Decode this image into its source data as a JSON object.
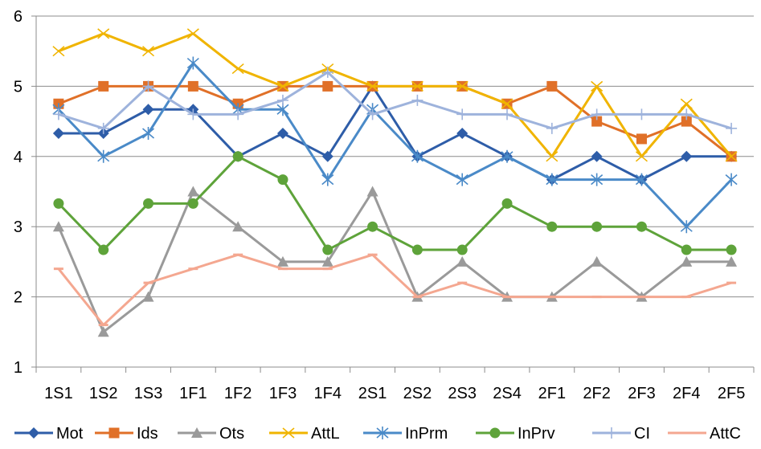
{
  "chart_data": {
    "type": "line",
    "categories": [
      "1S1",
      "1S2",
      "1S3",
      "1F1",
      "1F2",
      "1F3",
      "1F4",
      "2S1",
      "2S2",
      "2S3",
      "2S4",
      "2F1",
      "2F2",
      "2F3",
      "2F4",
      "2F5"
    ],
    "ylim": [
      1,
      6
    ],
    "yticks": [
      "1",
      "2",
      "3",
      "4",
      "5",
      "6"
    ],
    "grid": "horizontal",
    "legend_position": "bottom",
    "series": [
      {
        "name": "Mot",
        "color": "#2E5DA8",
        "marker": "diamond",
        "values": [
          4.33,
          4.33,
          4.67,
          4.67,
          4.0,
          4.33,
          4.0,
          5.0,
          4.0,
          4.33,
          4.0,
          3.67,
          4.0,
          3.67,
          4.0,
          4.0
        ]
      },
      {
        "name": "Ids",
        "color": "#E07028",
        "marker": "square",
        "values": [
          4.75,
          5.0,
          5.0,
          5.0,
          4.75,
          5.0,
          5.0,
          5.0,
          5.0,
          5.0,
          4.75,
          5.0,
          4.5,
          4.25,
          4.5,
          4.0
        ]
      },
      {
        "name": "Ots",
        "color": "#9A9A9A",
        "marker": "triangle",
        "values": [
          3.0,
          1.5,
          2.0,
          3.5,
          3.0,
          2.5,
          2.5,
          3.5,
          2.0,
          2.5,
          2.0,
          2.0,
          2.5,
          2.0,
          2.5,
          2.5
        ]
      },
      {
        "name": "AttL",
        "color": "#F0B400",
        "marker": "x",
        "values": [
          5.5,
          5.75,
          5.5,
          5.75,
          5.25,
          5.0,
          5.25,
          5.0,
          5.0,
          5.0,
          4.75,
          4.0,
          5.0,
          4.0,
          4.75,
          4.0
        ]
      },
      {
        "name": "InPrm",
        "color": "#4A8AC8",
        "marker": "star",
        "values": [
          4.67,
          4.0,
          4.33,
          5.33,
          4.67,
          4.67,
          3.67,
          4.67,
          4.0,
          3.67,
          4.0,
          3.67,
          3.67,
          3.67,
          3.0,
          3.67
        ]
      },
      {
        "name": "InPrv",
        "color": "#5EA33A",
        "marker": "circle",
        "values": [
          3.33,
          2.67,
          3.33,
          3.33,
          4.0,
          3.67,
          2.67,
          3.0,
          2.67,
          2.67,
          3.33,
          3.0,
          3.0,
          3.0,
          2.67,
          2.67
        ]
      },
      {
        "name": "CI",
        "color": "#9EB3DC",
        "marker": "plus",
        "values": [
          4.6,
          4.4,
          5.0,
          4.6,
          4.6,
          4.8,
          5.2,
          4.6,
          4.8,
          4.6,
          4.6,
          4.4,
          4.6,
          4.6,
          4.6,
          4.4
        ]
      },
      {
        "name": "AttC",
        "color": "#F4A790",
        "marker": "dash",
        "values": [
          2.4,
          1.6,
          2.2,
          2.4,
          2.6,
          2.4,
          2.4,
          2.6,
          2.0,
          2.2,
          2.0,
          2.0,
          2.0,
          2.0,
          2.0,
          2.2
        ]
      }
    ]
  }
}
